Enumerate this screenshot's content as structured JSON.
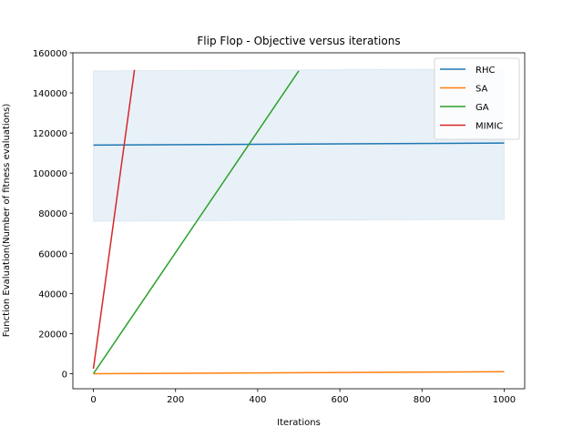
{
  "chart_data": {
    "type": "line",
    "title": "Flip Flop - Objective versus iterations",
    "xlabel": "Iterations",
    "ylabel": "Function Evaluation(Number of fitness evaluations)",
    "xlim": [
      -50,
      1050
    ],
    "ylim": [
      -7500,
      160000
    ],
    "xticks": [
      0,
      200,
      400,
      600,
      800,
      1000
    ],
    "yticks": [
      0,
      20000,
      40000,
      60000,
      80000,
      100000,
      120000,
      140000,
      160000
    ],
    "legend_position": "top-right",
    "grid": false,
    "series": [
      {
        "name": "RHC",
        "color": "#1f77b4",
        "x": [
          0,
          1000
        ],
        "y": [
          114000,
          115000
        ],
        "band": {
          "lower": [
            76000,
            77000
          ],
          "upper": [
            151000,
            152000
          ]
        }
      },
      {
        "name": "SA",
        "color": "#ff7f0e",
        "x": [
          0,
          1000
        ],
        "y": [
          0,
          1000
        ]
      },
      {
        "name": "GA",
        "color": "#2ca02c",
        "x": [
          0,
          500
        ],
        "y": [
          0,
          151000
        ]
      },
      {
        "name": "MIMIC",
        "color": "#d62728",
        "x": [
          0,
          100
        ],
        "y": [
          2500,
          151500
        ]
      }
    ]
  }
}
